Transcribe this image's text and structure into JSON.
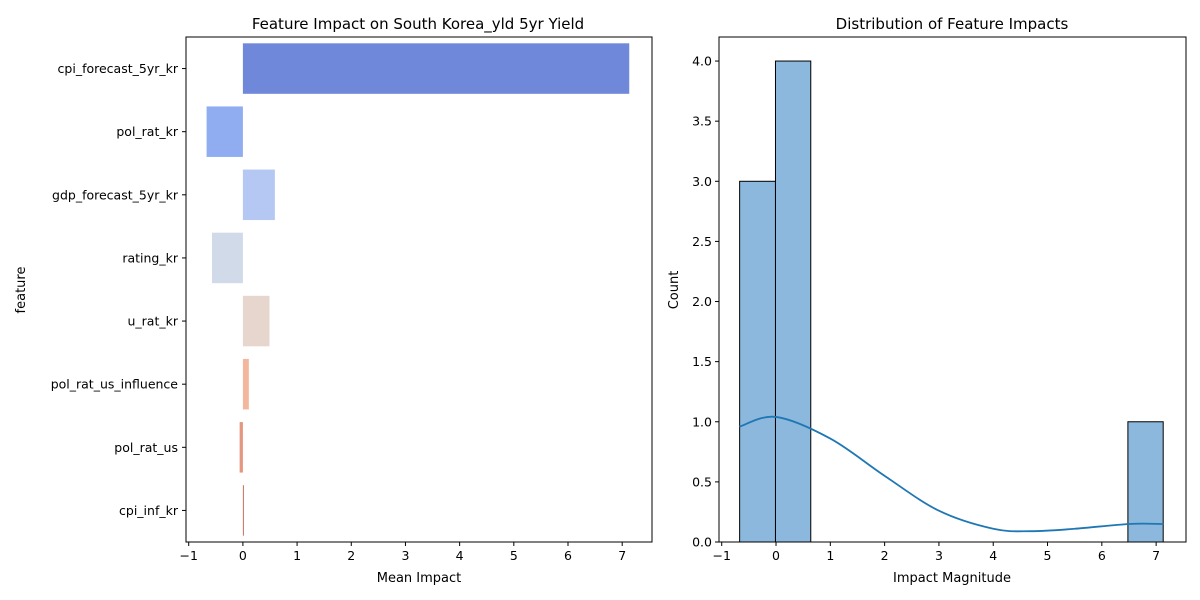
{
  "chart_data": [
    {
      "type": "bar",
      "orientation": "horizontal",
      "title": "Feature Impact on South Korea_yld 5yr Yield",
      "xlabel": "Mean Impact",
      "ylabel": "feature",
      "xlim": [
        -1.05,
        7.55
      ],
      "xticks": [
        -1,
        0,
        1,
        2,
        3,
        4,
        5,
        6,
        7
      ],
      "grid": false,
      "categories": [
        "cpi_forecast_5yr_kr",
        "pol_rat_kr",
        "gdp_forecast_5yr_kr",
        "rating_kr",
        "u_rat_kr",
        "pol_rat_us_influence",
        "pol_rat_us",
        "cpi_inf_kr"
      ],
      "values": [
        7.13,
        -0.67,
        0.59,
        -0.57,
        0.49,
        0.11,
        -0.06,
        0.01
      ],
      "colors": [
        "#6f88d9",
        "#8fadf0",
        "#b4c8f3",
        "#d0dae9",
        "#e6d6cd",
        "#f2b79c",
        "#e5977e",
        "#c6705c"
      ]
    },
    {
      "type": "histogram",
      "title": "Distribution of Feature Impacts",
      "xlabel": "Impact Magnitude",
      "ylabel": "Count",
      "xlim": [
        -1.05,
        7.55
      ],
      "ylim": [
        0,
        4.2
      ],
      "xticks": [
        -1,
        0,
        1,
        2,
        3,
        4,
        5,
        6,
        7
      ],
      "yticks": [
        0.0,
        0.5,
        1.0,
        1.5,
        2.0,
        2.5,
        3.0,
        3.5,
        4.0
      ],
      "grid": false,
      "bar_color": "#8bb8dc",
      "bins": [
        {
          "start": -0.67,
          "end": -0.01,
          "count": 3
        },
        {
          "start": -0.01,
          "end": 0.64,
          "count": 4
        },
        {
          "start": 0.64,
          "end": 1.29,
          "count": 0
        },
        {
          "start": 1.29,
          "end": 1.94,
          "count": 0
        },
        {
          "start": 1.94,
          "end": 2.59,
          "count": 0
        },
        {
          "start": 2.59,
          "end": 3.24,
          "count": 0
        },
        {
          "start": 3.24,
          "end": 3.89,
          "count": 0
        },
        {
          "start": 3.89,
          "end": 4.53,
          "count": 0
        },
        {
          "start": 4.53,
          "end": 5.18,
          "count": 0
        },
        {
          "start": 5.18,
          "end": 5.83,
          "count": 0
        },
        {
          "start": 5.83,
          "end": 6.48,
          "count": 0
        },
        {
          "start": 6.48,
          "end": 7.13,
          "count": 1
        }
      ],
      "kde": {
        "color": "#1f77b4",
        "x": [
          -0.67,
          0.0,
          1.0,
          2.0,
          3.0,
          4.0,
          4.7,
          5.5,
          6.5,
          7.13
        ],
        "y": [
          0.96,
          1.04,
          0.86,
          0.55,
          0.26,
          0.11,
          0.09,
          0.11,
          0.15,
          0.15
        ]
      }
    }
  ]
}
